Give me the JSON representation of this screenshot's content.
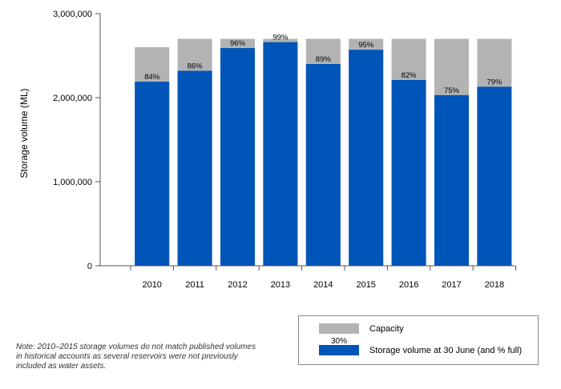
{
  "chart_data": {
    "type": "bar",
    "stacked_overlay": true,
    "categories": [
      "2010",
      "2011",
      "2012",
      "2013",
      "2014",
      "2015",
      "2016",
      "2017",
      "2018"
    ],
    "series": [
      {
        "name": "Capacity",
        "color": "#b3b3b3",
        "values": [
          2600000,
          2700000,
          2700000,
          2700000,
          2700000,
          2700000,
          2700000,
          2700000,
          2700000
        ]
      },
      {
        "name": "Storage volume at 30 June (and % full)",
        "color": "#0055b8",
        "values": [
          2190000,
          2320000,
          2590000,
          2660000,
          2400000,
          2570000,
          2210000,
          2030000,
          2130000
        ],
        "data_labels": [
          "84%",
          "86%",
          "96%",
          "99%",
          "89%",
          "95%",
          "82%",
          "75%",
          "79%"
        ]
      }
    ],
    "ylabel": "Storage volume (ML)",
    "ylim": [
      0,
      3000000
    ],
    "yticks": [
      0,
      1000000,
      2000000,
      3000000
    ],
    "ytick_labels": [
      "0",
      "1,000,000",
      "2,000,000",
      "3,000,000"
    ],
    "legend": {
      "position": "bottom-right",
      "entries": [
        "Capacity",
        "Storage volume at 30 June (and % full)"
      ],
      "sample_label": "30%"
    }
  },
  "note": "Note: 2010–2015 storage volumes do not match published volumes in historical accounts as several reservoirs were not previously included as water assets."
}
